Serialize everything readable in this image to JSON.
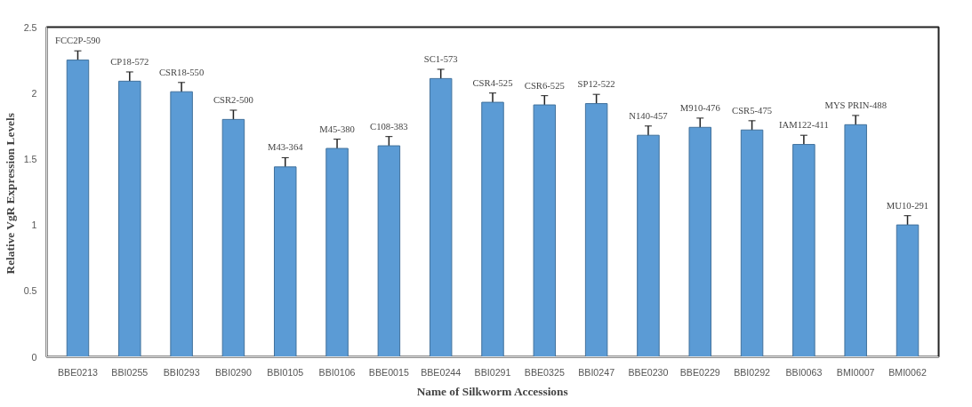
{
  "chart_data": {
    "type": "bar",
    "xlabel": "Name of Silkworm Accessions",
    "ylabel": "Relative VgR  Expression Levels",
    "categories": [
      "BBE0213",
      "BBI0255",
      "BBI0293",
      "BBI0290",
      "BBI0105",
      "BBI0106",
      "BBE0015",
      "BBE0244",
      "BBI0291",
      "BBE0325",
      "BBI0247",
      "BBE0230",
      "BBE0229",
      "BBI0292",
      "BBI0063",
      "BMI0007",
      "BMI0062"
    ],
    "values": [
      2.25,
      2.09,
      2.01,
      1.8,
      1.44,
      1.58,
      1.6,
      2.11,
      1.93,
      1.91,
      1.92,
      1.68,
      1.74,
      1.72,
      1.61,
      1.76,
      1.0
    ],
    "errors": [
      0.07,
      0.07,
      0.07,
      0.07,
      0.07,
      0.07,
      0.07,
      0.07,
      0.07,
      0.07,
      0.07,
      0.07,
      0.07,
      0.07,
      0.07,
      0.07,
      0.07
    ],
    "color": "#5b9bd5",
    "ylim": [
      0,
      2.5
    ],
    "yticks": [
      0,
      0.5,
      1,
      1.5,
      2,
      2.5
    ],
    "grid": false,
    "annotations": [
      {
        "text": "FCC2P-590",
        "x": "BBE0213",
        "y": 2.32
      },
      {
        "text": "CP18-572",
        "x": "BBI0255",
        "y": 2.16
      },
      {
        "text": "CSR18-550",
        "x": "BBI0293",
        "y": 2.08
      },
      {
        "text": "CSR2-500",
        "x": "BBI0290",
        "y": 1.87
      },
      {
        "text": "M43-364",
        "x": "BBI0105",
        "y": 1.51
      },
      {
        "text": "M45-380",
        "x": "BBI0106",
        "y": 1.65
      },
      {
        "text": "C108-383",
        "x": "BBE0015",
        "y": 1.67
      },
      {
        "text": "SC1-573",
        "x": "BBE0244",
        "y": 2.18
      },
      {
        "text": "CSR4-525",
        "x": "BBI0291",
        "y": 2.0
      },
      {
        "text": "CSR6-525",
        "x": "BBE0325",
        "y": 1.98
      },
      {
        "text": "SP12-522",
        "x": "BBI0247",
        "y": 1.99
      },
      {
        "text": "N140-457",
        "x": "BBE0230",
        "y": 1.75
      },
      {
        "text": "M910-476",
        "x": "BBE0229",
        "y": 1.81
      },
      {
        "text": "CSR5-475",
        "x": "BBI0292",
        "y": 1.79
      },
      {
        "text": "IAM122-411",
        "x": "BBI0063",
        "y": 1.68
      },
      {
        "text": "MYS PRIN-488",
        "x": "BMI0007",
        "y": 1.83
      },
      {
        "text": "MU10-291",
        "x": "BMI0062",
        "y": 1.07
      }
    ]
  }
}
